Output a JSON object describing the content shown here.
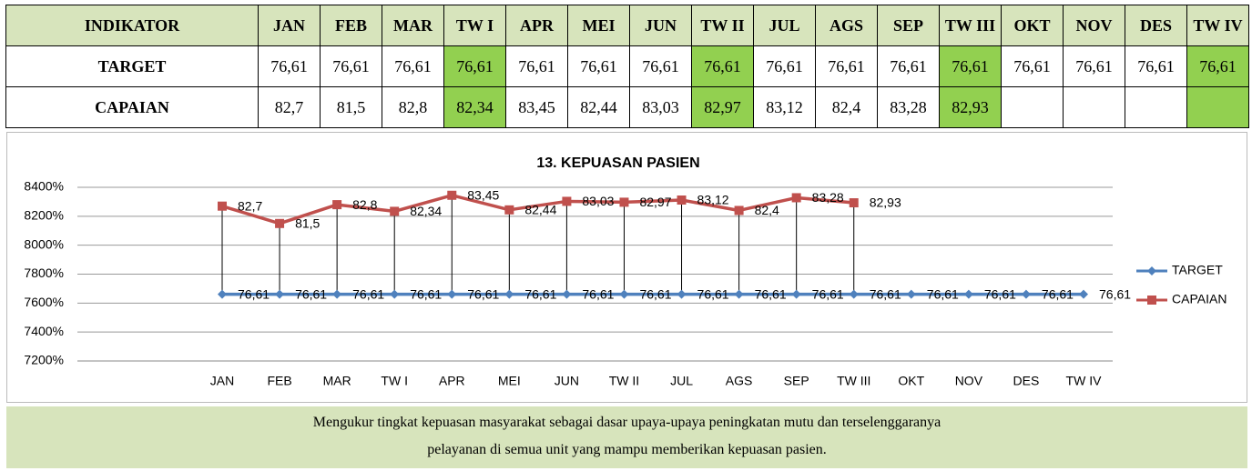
{
  "table": {
    "header": [
      "INDIKATOR",
      "JAN",
      "FEB",
      "MAR",
      "TW I",
      "APR",
      "MEI",
      "JUN",
      "TW II",
      "JUL",
      "AGS",
      "SEP",
      "TW III",
      "OKT",
      "NOV",
      "DES",
      "TW IV"
    ],
    "rows": [
      {
        "label": "TARGET",
        "values": [
          "76,61",
          "76,61",
          "76,61",
          "76,61",
          "76,61",
          "76,61",
          "76,61",
          "76,61",
          "76,61",
          "76,61",
          "76,61",
          "76,61",
          "76,61",
          "76,61",
          "76,61",
          "76,61"
        ]
      },
      {
        "label": "CAPAIAN",
        "values": [
          "82,7",
          "81,5",
          "82,8",
          "82,34",
          "83,45",
          "82,44",
          "83,03",
          "82,97",
          "83,12",
          "82,4",
          "83,28",
          "82,93"
        ]
      }
    ]
  },
  "chart_data": {
    "type": "line",
    "title": "13. KEPUASAN PASIEN",
    "categories": [
      "JAN",
      "FEB",
      "MAR",
      "TW I",
      "APR",
      "MEI",
      "JUN",
      "TW II",
      "JUL",
      "AGS",
      "SEP",
      "TW III",
      "OKT",
      "NOV",
      "DES",
      "TW IV"
    ],
    "series": [
      {
        "name": "TARGET",
        "color": "#4f81bd",
        "marker": "diamond",
        "values": [
          76.61,
          76.61,
          76.61,
          76.61,
          76.61,
          76.61,
          76.61,
          76.61,
          76.61,
          76.61,
          76.61,
          76.61,
          76.61,
          76.61,
          76.61,
          76.61
        ],
        "value_labels": [
          "76,61",
          "76,61",
          "76,61",
          "76,61",
          "76,61",
          "76,61",
          "76,61",
          "76,61",
          "76,61",
          "76,61",
          "76,61",
          "76,61",
          "76,61",
          "76,61",
          "76,61",
          "76,61"
        ]
      },
      {
        "name": "CAPAIAN",
        "color": "#c0504d",
        "marker": "square",
        "values": [
          82.7,
          81.5,
          82.8,
          82.34,
          83.45,
          82.44,
          83.03,
          82.97,
          83.12,
          82.4,
          83.28,
          82.93,
          null,
          null,
          null,
          null
        ],
        "value_labels": [
          "82,7",
          "81,5",
          "82,8",
          "82,34",
          "83,45",
          "82,44",
          "83,03",
          "82,97",
          "83,12",
          "82,4",
          "83,28",
          "82,93",
          null,
          null,
          null,
          null
        ]
      }
    ],
    "ylim": [
      72,
      84
    ],
    "yticks": [
      {
        "value": 72,
        "label": "7200%"
      },
      {
        "value": 74,
        "label": "7400%"
      },
      {
        "value": 76,
        "label": "7600%"
      },
      {
        "value": 78,
        "label": "7800%"
      },
      {
        "value": 80,
        "label": "8000%"
      },
      {
        "value": 82,
        "label": "8200%"
      },
      {
        "value": 84,
        "label": "8400%"
      }
    ],
    "grid": true,
    "drop_lines": true,
    "legend": "right"
  },
  "footer": [
    "Mengukur tingkat kepuasan masyarakat sebagai dasar upaya-upaya peningkatan mutu dan terselenggaranya",
    "pelayanan di semua unit yang mampu memberikan kepuasan pasien."
  ]
}
